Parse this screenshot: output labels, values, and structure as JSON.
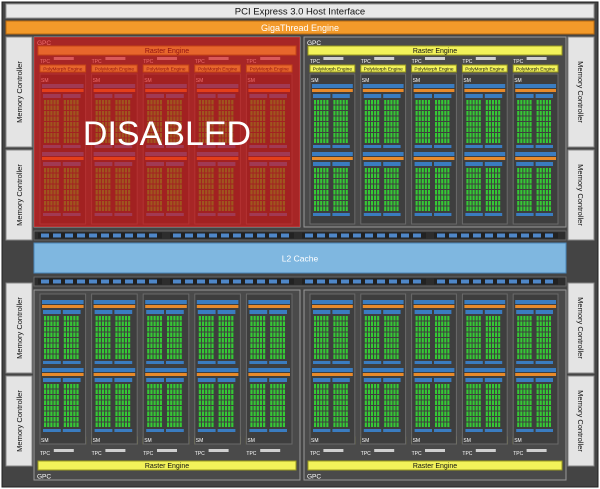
{
  "header": {
    "bus_title": "PCI Express 3.0 Host Interface",
    "engine_title": "GigaThread Engine"
  },
  "memory_controller_label": "Memory Controller",
  "l2_label": "L2 Cache",
  "gpc_label": "GPC",
  "raster_label": "Raster Engine",
  "polymorph_label": "PolyMorph Engine",
  "tpc_label": "TPC",
  "sm_label": "SM",
  "disabled_label": "DISABLED",
  "quadrants": [
    {
      "id": "top-left",
      "state": "disabled"
    },
    {
      "id": "top-right",
      "state": "enabled"
    },
    {
      "id": "bottom-left",
      "state": "enabled"
    },
    {
      "id": "bottom-right",
      "state": "enabled"
    }
  ],
  "colors": {
    "chip_background": "#444444",
    "header_bar": "#e8e8e8",
    "gigathread": "#f39a2a",
    "l2_cache": "#7fb7e0",
    "raster": "#f2f25a",
    "cores": "#35c935",
    "sm_frame": "#3a7cc0",
    "disabled_overlay": "#e01010"
  }
}
